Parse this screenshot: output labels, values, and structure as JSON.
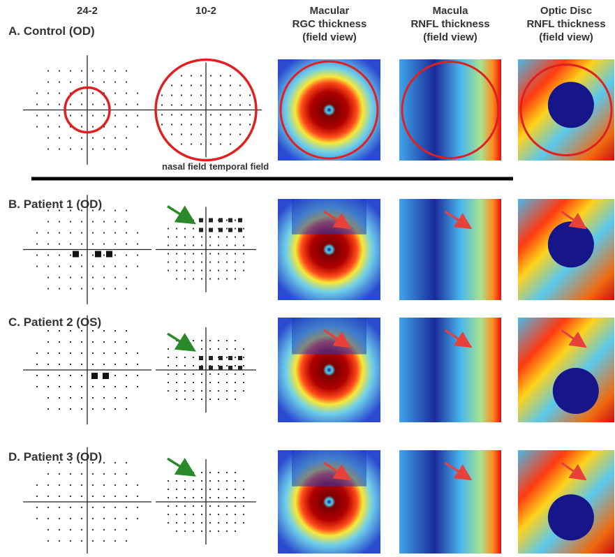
{
  "column_headers": [
    [
      "24-2"
    ],
    [
      "10-2"
    ],
    [
      "Macular",
      "RGC thickness",
      "(field view)"
    ],
    [
      "Macula",
      "RNFL thickness",
      "(field view)"
    ],
    [
      "Optic Disc",
      "RNFL thickness",
      "(field view)"
    ]
  ],
  "rows": [
    {
      "label": "A. Control (OD)"
    },
    {
      "label": "B. Patient 1 (OD)"
    },
    {
      "label": "C. Patient 2 (OS)"
    },
    {
      "label": "D. Patient 3 (OD)"
    }
  ],
  "field_labels": {
    "nasal": "nasal field",
    "temporal": "temporal field"
  }
}
